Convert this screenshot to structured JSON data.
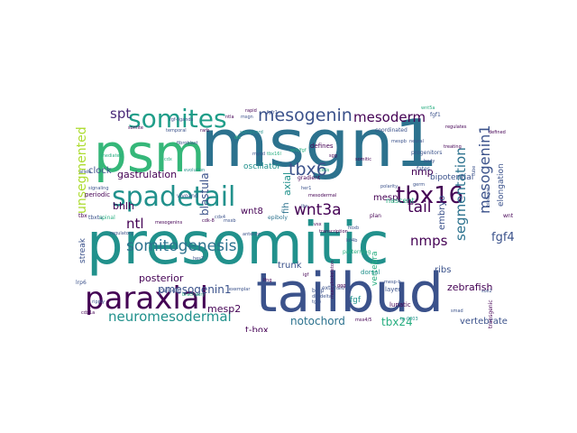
{
  "cloud": {
    "presomitic": "presomitic",
    "msgn1": "msgn1",
    "tailbud": "tailbud",
    "psm": "psm",
    "paraxial": "paraxial",
    "spadetail": "spadetail",
    "somites": "somites",
    "tbx16": "tbx16",
    "somitogenesis": "somitogenesis",
    "neuromesodermal": "neuromesodermal",
    "mesogenin": "mesogenin",
    "mesoderm": "mesoderm",
    "mesogenin1": "mesogenin1",
    "segmentation": "segmentation",
    "unsegmented": "unsegmented",
    "tbx6": "tbx6",
    "wnt3a": "wnt3a",
    "tail": "tail",
    "nmps": "nmps",
    "spt": "spt",
    "ntl": "ntl",
    "fgf4": "fgf4",
    "notochord": "notochord",
    "tbx24": "tbx24",
    "zebrafish": "zebrafish",
    "pmesogenin1": "pmesogenin1",
    "gastrulation": "gastrulation",
    "blastula": "blastula",
    "bhlh": "bhlh",
    "posterior": "posterior",
    "mesp2": "mesp2",
    "vertebrate": "vertebrate",
    "embryo": "embryo",
    "wnt8": "wnt8",
    "fgf8": "fgf8",
    "mesp": "mesp",
    "nmp": "nmp",
    "t_box": "t-box",
    "trunk": "trunk",
    "ribs": "ribs",
    "streak": "streak",
    "oscillator": "oscillator",
    "bipotential": "bipotential",
    "elongation": "elongation",
    "clock": "clock",
    "fgf": "fgf",
    "axial": "axial",
    "fih": "fih",
    "nascent": "nascent",
    "multifunctional": "multifunctional",
    "vertebra": "vertebra",
    "defines": "defines",
    "periodic": "periodic",
    "lunatic": "lunatic",
    "layer": "layer",
    "dorsal": "dorsal",
    "fates": "fates",
    "calledtg": "calledtg",
    "vivoand": "vivoand",
    "epiboly": "epiboly",
    "extension": "extension",
    "coordinated": "coordinated",
    "progenitors": "progenitors",
    "gradient": "gradient",
    "musculoskeleton": "musculoskeleton",
    "patterning": "patterning",
    "wnt": "wnt",
    "tbxta": "tbxta",
    "temporal": "temporal",
    "spinal": "spinal",
    "lrp6": "lrp6",
    "bmp": "bmp",
    "transgenic": "transgenic",
    "neural": "neural",
    "tube": "tube",
    "fgf1": "fgf1",
    "wnt5a": "wnt5a",
    "fgfr1": "fgfr1",
    "body": "body",
    "anterior": "anterior",
    "germ": "germ",
    "regulatory": "regulatory",
    "somite": "somite",
    "cells": "cells",
    "polarity": "polarity",
    "her1": "her1",
    "dlc": "dlc",
    "rarb": "rarb",
    "sgg": "sgg",
    "cdx": "cdx",
    "mespb": "mespb",
    "kif4b": "kif4b",
    "hes7": "hes7",
    "tbx": "tbx",
    "cdx4": "cdx4",
    "mesodermal": "mesodermal",
    "brachyury": "brachyury",
    "signaling": "signaling",
    "exemplar": "exemplar",
    "biologist": "biologist",
    "treating": "treating",
    "evolution": "evolution",
    "mesogenins": "mesogenins",
    "dlc_delta": "dlc-delta",
    "cdk_8": "cdk-8",
    "msxb": "msxb",
    "spinalcord": "spinalcord",
    "ntla": "ntla",
    "msgn": "msgn",
    "wnt_fgf": "wnt/fgf",
    "fgf_ligands": "fgf-ligands",
    "tbx16l": "tbx16l",
    "sox2": "sox2",
    "smad": "smad",
    "transcription": "transcription",
    "mesp_b": "mesp-b",
    "vsx": "vsx",
    "hoxb": "hoxb",
    "tp_0003": "tp-0003",
    "msx4_5": "msx4/5",
    "cdx1a": "cdx1a",
    "ripply": "ripply",
    "rapid": "rapid",
    "fibroblast": "fibroblast",
    "defined": "defined",
    "regulates": "regulates",
    "mediated": "mediated",
    "allele": "allele",
    "igf": "igf",
    "ibx": "ibx",
    "tgfb": "tgfb",
    "somitic": "somitic",
    "myod": "myod",
    "lfng": "lfng",
    "plan": "plan",
    "ggg": "ggg"
  }
}
